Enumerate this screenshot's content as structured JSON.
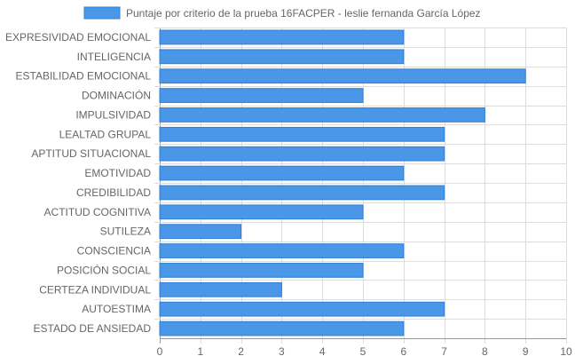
{
  "chart_data": {
    "type": "bar",
    "orientation": "horizontal",
    "categories": [
      "EXPRESIVIDAD EMOCIONAL",
      "INTELIGENCIA",
      "ESTABILIDAD EMOCIONAL",
      "DOMINACIÓN",
      "IMPULSIVIDAD",
      "LEALTAD GRUPAL",
      "APTITUD SITUACIONAL",
      "EMOTIVIDAD",
      "CREDIBILIDAD",
      "ACTITUD COGNITIVA",
      "SUTILEZA",
      "CONSCIENCIA",
      "POSICIÓN SOCIAL",
      "CERTEZA INDIVIDUAL",
      "AUTOESTIMA",
      "ESTADO DE ANSIEDAD"
    ],
    "series": [
      {
        "name": "Puntaje por criterio de la prueba 16FACPER - leslie fernanda García López",
        "values": [
          6,
          6,
          9,
          5,
          8,
          7,
          7,
          6,
          7,
          5,
          2,
          6,
          5,
          3,
          7,
          6
        ]
      }
    ],
    "xlim": [
      0,
      10
    ],
    "xticks": [
      "0",
      "1",
      "2",
      "3",
      "4",
      "5",
      "6",
      "7",
      "8",
      "9",
      "10"
    ],
    "grid": true,
    "legend": "top-center",
    "colors": {
      "bar_fill": "#4a97e8",
      "bar_stroke": "#2f7fd6",
      "grid": "#dddddd",
      "axis": "#999999",
      "text": "#666666"
    }
  }
}
